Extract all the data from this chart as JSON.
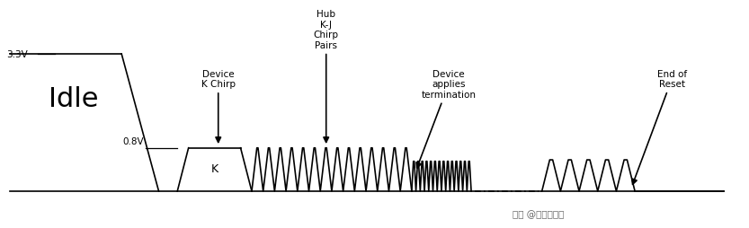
{
  "fig_width": 8.33,
  "fig_height": 2.55,
  "dpi": 100,
  "bg_color": "#ffffff",
  "line_color": "#000000",
  "line_width": 1.2,
  "idle_label": "Idle",
  "v33_label": "3.3V",
  "v08_label": "0.8V",
  "k_label": "K",
  "label_device_k": "Device\nK Chirp",
  "label_hub_kj": "Hub\nK-J\nChirp\nPairs",
  "label_device_applies": "Device\napplies\ntermination",
  "label_end_reset": "End of\nReset",
  "watermark": "头条 @工程师小何"
}
